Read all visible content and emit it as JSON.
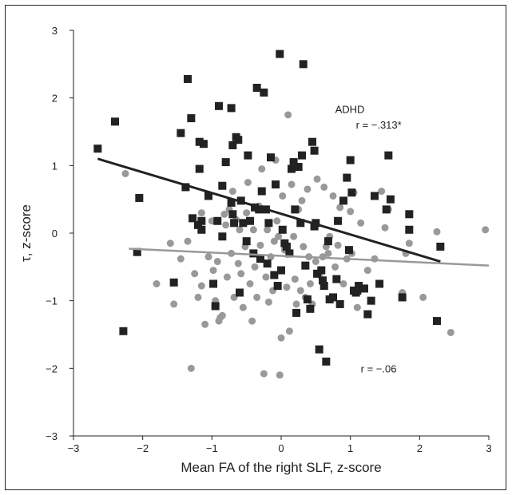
{
  "chart_data": {
    "type": "scatter",
    "xlabel": "Mean FA of the right SLF, z-score",
    "ylabel": "τ, z-score",
    "xlim": [
      -3,
      3
    ],
    "ylim": [
      -3,
      3
    ],
    "x_ticks": [
      "−3",
      "−2",
      "−1",
      "0",
      "1",
      "2",
      "3"
    ],
    "y_ticks": [
      "3",
      "2",
      "1",
      "0",
      "−1",
      "−2",
      "−3"
    ],
    "grid": false,
    "annotations": {
      "adhd_label": "ADHD",
      "adhd_r": "r = −.313*",
      "control_r": "r = −.06"
    },
    "series": [
      {
        "marker": "square",
        "color": "#222222",
        "points": [
          [
            -2.65,
            1.25
          ],
          [
            -2.4,
            1.65
          ],
          [
            -2.28,
            -1.45
          ],
          [
            -2.08,
            -0.28
          ],
          [
            -2.05,
            0.52
          ],
          [
            -1.55,
            -0.73
          ],
          [
            -1.45,
            1.48
          ],
          [
            -1.38,
            0.68
          ],
          [
            -1.35,
            2.28
          ],
          [
            -1.3,
            1.7
          ],
          [
            -1.28,
            0.22
          ],
          [
            -1.2,
            0.12
          ],
          [
            -1.18,
            0.95
          ],
          [
            -1.18,
            1.35
          ],
          [
            -1.15,
            0.18
          ],
          [
            -1.15,
            0.05
          ],
          [
            -1.12,
            1.32
          ],
          [
            -1.05,
            0.55
          ],
          [
            -0.98,
            -0.75
          ],
          [
            -0.95,
            -1.08
          ],
          [
            -0.92,
            0.18
          ],
          [
            -0.9,
            1.88
          ],
          [
            -0.85,
            -0.05
          ],
          [
            -0.85,
            0.7
          ],
          [
            -0.8,
            1.05
          ],
          [
            -0.72,
            1.85
          ],
          [
            -0.72,
            0.45
          ],
          [
            -0.7,
            1.3
          ],
          [
            -0.7,
            0.28
          ],
          [
            -0.68,
            0.15
          ],
          [
            -0.65,
            1.42
          ],
          [
            -0.62,
            1.38
          ],
          [
            -0.6,
            -0.88
          ],
          [
            -0.58,
            0.48
          ],
          [
            -0.55,
            0.15
          ],
          [
            -0.5,
            -0.12
          ],
          [
            -0.48,
            1.15
          ],
          [
            -0.45,
            0.18
          ],
          [
            -0.4,
            -0.3
          ],
          [
            -0.38,
            0.38
          ],
          [
            -0.35,
            2.15
          ],
          [
            -0.32,
            0.35
          ],
          [
            -0.3,
            -0.38
          ],
          [
            -0.28,
            0.62
          ],
          [
            -0.25,
            2.08
          ],
          [
            -0.22,
            0.35
          ],
          [
            -0.2,
            -0.45
          ],
          [
            -0.18,
            0.15
          ],
          [
            -0.15,
            1.12
          ],
          [
            -0.1,
            -0.62
          ],
          [
            -0.08,
            0.72
          ],
          [
            -0.05,
            -0.78
          ],
          [
            -0.02,
            2.65
          ],
          [
            0.0,
            -0.55
          ],
          [
            0.02,
            0.05
          ],
          [
            0.05,
            -0.15
          ],
          [
            0.08,
            -0.2
          ],
          [
            0.12,
            -0.3
          ],
          [
            0.15,
            0.95
          ],
          [
            0.18,
            1.05
          ],
          [
            0.2,
            0.35
          ],
          [
            0.22,
            -1.18
          ],
          [
            0.25,
            0.98
          ],
          [
            0.28,
            0.15
          ],
          [
            0.3,
            1.15
          ],
          [
            0.32,
            2.5
          ],
          [
            0.35,
            -0.48
          ],
          [
            0.38,
            -0.98
          ],
          [
            0.42,
            -1.12
          ],
          [
            0.45,
            1.35
          ],
          [
            0.48,
            1.22
          ],
          [
            0.48,
            0.1
          ],
          [
            0.5,
            0.15
          ],
          [
            0.52,
            -0.6
          ],
          [
            0.55,
            -1.72
          ],
          [
            0.58,
            -0.55
          ],
          [
            0.6,
            -0.7
          ],
          [
            0.62,
            -0.78
          ],
          [
            0.65,
            -1.9
          ],
          [
            0.68,
            -0.12
          ],
          [
            0.7,
            -0.98
          ],
          [
            0.75,
            -0.95
          ],
          [
            0.8,
            -0.68
          ],
          [
            0.82,
            0.18
          ],
          [
            0.85,
            -1.05
          ],
          [
            0.9,
            0.48
          ],
          [
            0.95,
            0.82
          ],
          [
            0.98,
            -0.25
          ],
          [
            1.0,
            1.08
          ],
          [
            1.02,
            0.6
          ],
          [
            1.05,
            -0.85
          ],
          [
            1.08,
            -0.88
          ],
          [
            1.1,
            -0.85
          ],
          [
            1.12,
            -0.78
          ],
          [
            1.2,
            -0.82
          ],
          [
            1.25,
            -1.2
          ],
          [
            1.3,
            -1.0
          ],
          [
            1.35,
            0.55
          ],
          [
            1.42,
            -0.75
          ],
          [
            1.52,
            0.35
          ],
          [
            1.55,
            1.15
          ],
          [
            1.58,
            0.5
          ],
          [
            1.75,
            -0.95
          ],
          [
            1.85,
            0.28
          ],
          [
            1.85,
            0.05
          ],
          [
            2.25,
            -1.3
          ],
          [
            2.3,
            -0.2
          ]
        ]
      },
      {
        "marker": "circle",
        "color": "#999999",
        "points": [
          [
            -2.25,
            0.88
          ],
          [
            -1.8,
            -0.75
          ],
          [
            -1.6,
            -0.15
          ],
          [
            -1.55,
            -1.05
          ],
          [
            -1.45,
            -0.38
          ],
          [
            -1.35,
            -0.12
          ],
          [
            -1.3,
            -2.0
          ],
          [
            -1.25,
            -0.6
          ],
          [
            -1.2,
            -0.95
          ],
          [
            -1.15,
            0.3
          ],
          [
            -1.15,
            -0.78
          ],
          [
            -1.1,
            -1.35
          ],
          [
            -1.05,
            -0.35
          ],
          [
            -1.0,
            0.18
          ],
          [
            -0.98,
            -0.55
          ],
          [
            -0.95,
            -1.0
          ],
          [
            -0.92,
            -0.42
          ],
          [
            -0.9,
            -1.3
          ],
          [
            -0.88,
            -1.25
          ],
          [
            -0.85,
            -1.22
          ],
          [
            -0.82,
            0.28
          ],
          [
            -0.8,
            0.12
          ],
          [
            -0.78,
            -0.65
          ],
          [
            -0.75,
            0.35
          ],
          [
            -0.72,
            -0.3
          ],
          [
            -0.7,
            0.62
          ],
          [
            -0.68,
            -0.95
          ],
          [
            -0.65,
            0.2
          ],
          [
            -0.62,
            -0.45
          ],
          [
            -0.6,
            0.05
          ],
          [
            -0.58,
            -0.6
          ],
          [
            -0.55,
            -1.1
          ],
          [
            -0.52,
            -0.2
          ],
          [
            -0.5,
            0.3
          ],
          [
            -0.48,
            0.75
          ],
          [
            -0.45,
            -0.75
          ],
          [
            -0.42,
            -1.3
          ],
          [
            -0.4,
            0.05
          ],
          [
            -0.38,
            -0.5
          ],
          [
            -0.35,
            -0.95
          ],
          [
            -0.32,
            0.4
          ],
          [
            -0.3,
            -0.18
          ],
          [
            -0.28,
            0.95
          ],
          [
            -0.25,
            -2.08
          ],
          [
            -0.22,
            -0.65
          ],
          [
            -0.2,
            0.05
          ],
          [
            -0.18,
            -1.02
          ],
          [
            -0.15,
            -0.35
          ],
          [
            -0.12,
            -0.85
          ],
          [
            -0.1,
            -0.12
          ],
          [
            -0.08,
            1.08
          ],
          [
            -0.06,
            0.18
          ],
          [
            -0.04,
            -0.05
          ],
          [
            -0.02,
            -2.1
          ],
          [
            0.0,
            -1.55
          ],
          [
            0.02,
            0.55
          ],
          [
            0.05,
            -0.25
          ],
          [
            0.08,
            -0.8
          ],
          [
            0.1,
            1.75
          ],
          [
            0.12,
            -1.45
          ],
          [
            0.15,
            0.72
          ],
          [
            0.18,
            -0.05
          ],
          [
            0.2,
            -0.68
          ],
          [
            0.22,
            -1.05
          ],
          [
            0.25,
            0.35
          ],
          [
            0.28,
            -0.85
          ],
          [
            0.3,
            0.48
          ],
          [
            0.32,
            -0.2
          ],
          [
            0.35,
            -0.95
          ],
          [
            0.38,
            0.65
          ],
          [
            0.4,
            -0.35
          ],
          [
            0.42,
            -0.75
          ],
          [
            0.45,
            -1.05
          ],
          [
            0.5,
            -0.42
          ],
          [
            0.52,
            0.8
          ],
          [
            0.55,
            -0.62
          ],
          [
            0.6,
            -0.35
          ],
          [
            0.62,
            0.68
          ],
          [
            0.65,
            -0.2
          ],
          [
            0.68,
            -0.3
          ],
          [
            0.7,
            -0.05
          ],
          [
            0.75,
            0.55
          ],
          [
            0.78,
            -0.5
          ],
          [
            0.82,
            -0.18
          ],
          [
            0.85,
            0.38
          ],
          [
            0.9,
            -0.75
          ],
          [
            0.95,
            -0.38
          ],
          [
            1.0,
            0.32
          ],
          [
            1.02,
            -0.3
          ],
          [
            1.05,
            0.6
          ],
          [
            1.1,
            -1.1
          ],
          [
            1.15,
            0.15
          ],
          [
            1.25,
            -0.55
          ],
          [
            1.35,
            -0.38
          ],
          [
            1.45,
            0.62
          ],
          [
            1.5,
            0.08
          ],
          [
            1.55,
            0.35
          ],
          [
            1.75,
            -0.88
          ],
          [
            1.8,
            -0.3
          ],
          [
            1.85,
            -0.15
          ],
          [
            2.05,
            -0.95
          ],
          [
            2.25,
            0.02
          ],
          [
            2.45,
            -1.47
          ],
          [
            2.95,
            0.05
          ]
        ]
      }
    ],
    "trend_lines": [
      {
        "color": "#222222",
        "x": [
          -2.65,
          2.3
        ],
        "y": [
          1.1,
          -0.42
        ]
      },
      {
        "color": "#999999",
        "x": [
          -2.2,
          3.0
        ],
        "y": [
          -0.23,
          -0.48
        ]
      }
    ]
  }
}
